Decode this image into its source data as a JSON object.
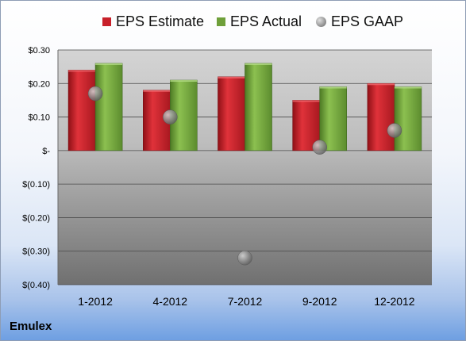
{
  "legend": [
    {
      "label": "EPS Estimate",
      "color": "#c8202a"
    },
    {
      "label": "EPS Actual",
      "color": "#6fa03a"
    },
    {
      "label": "EPS GAAP",
      "color": "#9a9a9a"
    }
  ],
  "company": "Emulex",
  "chart_data": {
    "type": "bar",
    "categories": [
      "1-2012",
      "4-2012",
      "7-2012",
      "9-2012",
      "12-2012"
    ],
    "series": [
      {
        "name": "EPS Estimate",
        "kind": "bar",
        "color": "#c8202a",
        "values": [
          0.24,
          0.18,
          0.22,
          0.15,
          0.2
        ]
      },
      {
        "name": "EPS Actual",
        "kind": "bar",
        "color": "#6fa03a",
        "values": [
          0.26,
          0.21,
          0.26,
          0.19,
          0.19
        ]
      },
      {
        "name": "EPS GAAP",
        "kind": "scatter",
        "color": "#9a9a9a",
        "values": [
          0.17,
          0.1,
          -0.32,
          0.01,
          0.06
        ]
      }
    ],
    "ylim": [
      -0.4,
      0.3
    ],
    "yticks": [
      0.3,
      0.2,
      0.1,
      0,
      -0.1,
      -0.2,
      -0.3,
      -0.4
    ],
    "ytick_labels": [
      "$0.30",
      "$0.20",
      "$0.10",
      "$-",
      "$(0.10)",
      "$(0.20)",
      "$(0.30)",
      "$(0.40)"
    ],
    "grid": true,
    "legend_position": "top"
  }
}
